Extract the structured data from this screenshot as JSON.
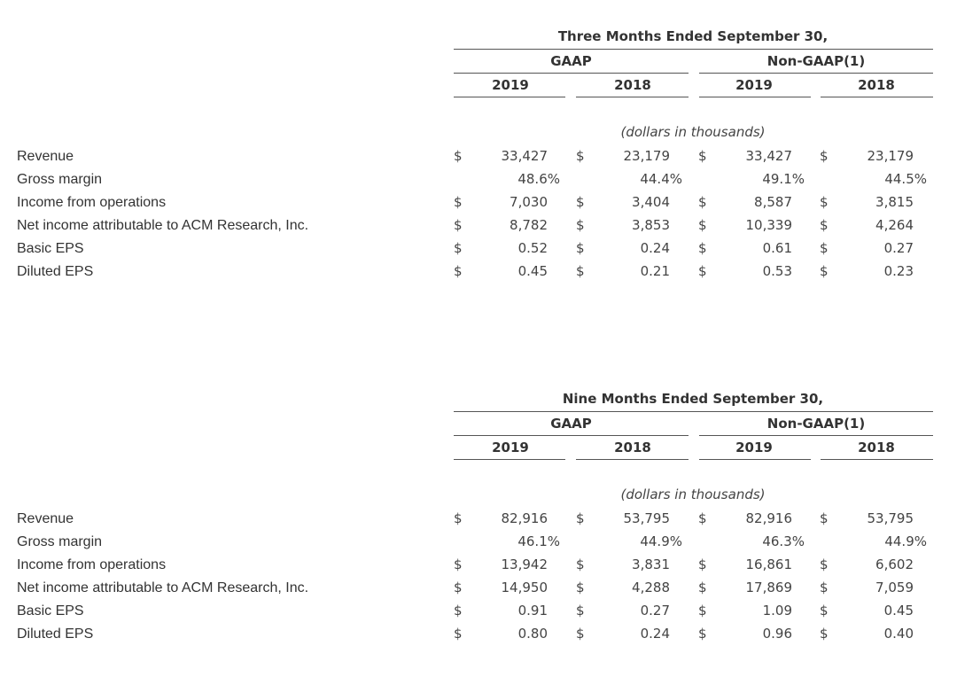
{
  "tables": [
    {
      "period": "Three Months Ended September 30,",
      "gaap": "GAAP",
      "non_gaap": "Non-GAAP(1)",
      "years": [
        "2019",
        "2018",
        "2019",
        "2018"
      ],
      "note": "(dollars in thousands)",
      "rows": [
        {
          "label": "Revenue",
          "dollar": [
            "$",
            "$",
            "$",
            "$"
          ],
          "values": [
            "33,427",
            "23,179",
            "33,427",
            "23,179"
          ]
        },
        {
          "label": "Gross margin",
          "dollar": [
            "",
            "",
            "",
            ""
          ],
          "values": [
            "48.6%",
            "44.4%",
            "49.1%",
            "44.5%"
          ]
        },
        {
          "label": "Income from operations",
          "dollar": [
            "$",
            "$",
            "$",
            "$"
          ],
          "values": [
            "7,030",
            "3,404",
            "8,587",
            "3,815"
          ]
        },
        {
          "label": "Net income attributable to ACM Research, Inc.",
          "dollar": [
            "$",
            "$",
            "$",
            "$"
          ],
          "values": [
            "8,782",
            "3,853",
            "10,339",
            "4,264"
          ]
        },
        {
          "label": "Basic EPS",
          "dollar": [
            "$",
            "$",
            "$",
            "$"
          ],
          "values": [
            "0.52",
            "0.24",
            "0.61",
            "0.27"
          ]
        },
        {
          "label": "Diluted EPS",
          "dollar": [
            "$",
            "$",
            "$",
            "$"
          ],
          "values": [
            "0.45",
            "0.21",
            "0.53",
            "0.23"
          ]
        }
      ]
    },
    {
      "period": "Nine Months Ended September 30,",
      "gaap": "GAAP",
      "non_gaap": "Non-GAAP(1)",
      "years": [
        "2019",
        "2018",
        "2019",
        "2018"
      ],
      "note": "(dollars in thousands)",
      "rows": [
        {
          "label": "Revenue",
          "dollar": [
            "$",
            "$",
            "$",
            "$"
          ],
          "values": [
            "82,916",
            "53,795",
            "82,916",
            "53,795"
          ]
        },
        {
          "label": "Gross margin",
          "dollar": [
            "",
            "",
            "",
            ""
          ],
          "values": [
            "46.1%",
            "44.9%",
            "46.3%",
            "44.9%"
          ]
        },
        {
          "label": "Income from operations",
          "dollar": [
            "$",
            "$",
            "$",
            "$"
          ],
          "values": [
            "13,942",
            "3,831",
            "16,861",
            "6,602"
          ]
        },
        {
          "label": "Net income attributable to ACM Research, Inc.",
          "dollar": [
            "$",
            "$",
            "$",
            "$"
          ],
          "values": [
            "14,950",
            "4,288",
            "17,869",
            "7,059"
          ]
        },
        {
          "label": "Basic EPS",
          "dollar": [
            "$",
            "$",
            "$",
            "$"
          ],
          "values": [
            "0.91",
            "0.27",
            "1.09",
            "0.45"
          ]
        },
        {
          "label": "Diluted EPS",
          "dollar": [
            "$",
            "$",
            "$",
            "$"
          ],
          "values": [
            "0.80",
            "0.24",
            "0.96",
            "0.40"
          ]
        }
      ]
    }
  ]
}
